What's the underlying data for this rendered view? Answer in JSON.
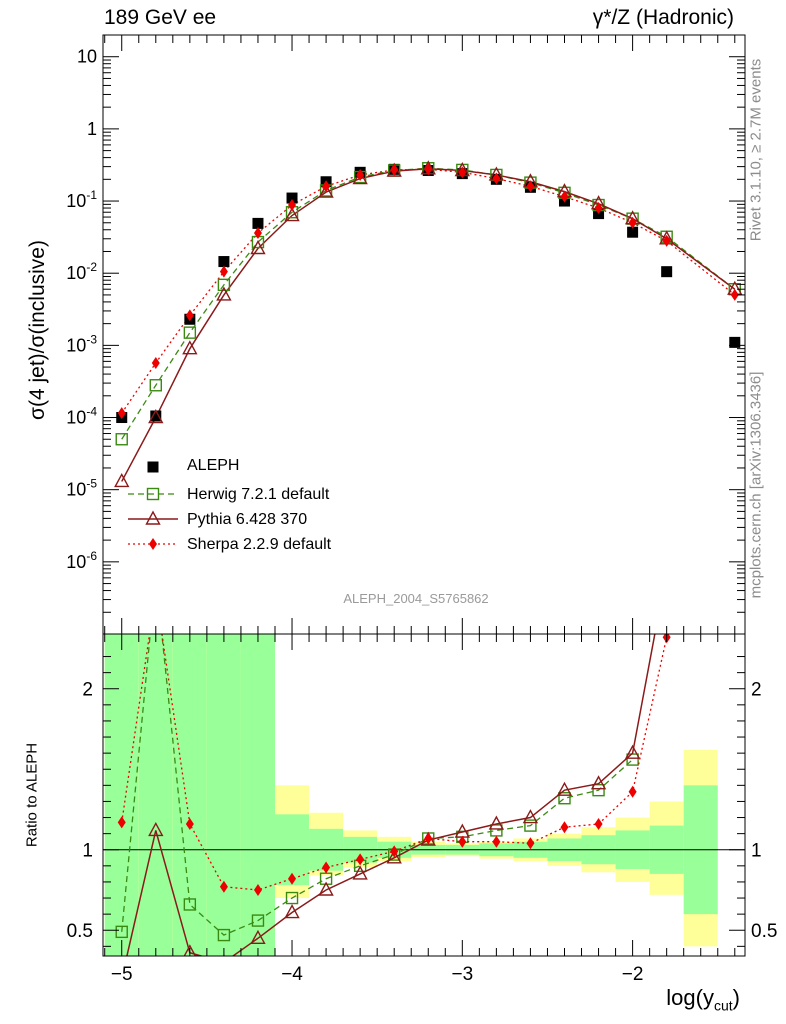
{
  "header": {
    "left": "189 GeV ee",
    "right": "γ*/Z (Hadronic)"
  },
  "side": {
    "rivet": "Rivet 3.1.10, ≥ 2.7M events",
    "mcplots": "mcplots.cern.ch [arXiv:1306.3436]"
  },
  "analysis_id": "ALEPH_2004_S5765862",
  "colors": {
    "data": "#000000",
    "herwig": "#3a8a12",
    "pythia": "#8b1a1a",
    "sherpa": "#ee0000",
    "band_inner": "#99ff99",
    "band_outer": "#ffff99"
  },
  "chart_data": [
    {
      "type": "scatter",
      "name": "main",
      "ylabel": "σ(4 jet)/σ(inclusive)",
      "yscale": "log",
      "ylim": [
        1e-07,
        20
      ],
      "xlim": [
        -5.11,
        -1.34
      ],
      "yticks": [
        {
          "v": 1e-06,
          "base": "10",
          "exp": "-6"
        },
        {
          "v": 1e-05,
          "base": "10",
          "exp": "-5"
        },
        {
          "v": 0.0001,
          "base": "10",
          "exp": "-4"
        },
        {
          "v": 0.001,
          "base": "10",
          "exp": "-3"
        },
        {
          "v": 0.01,
          "base": "10",
          "exp": "-2"
        },
        {
          "v": 0.1,
          "base": "10",
          "exp": "-1"
        },
        {
          "v": 1,
          "base": "1",
          "exp": ""
        },
        {
          "v": 10,
          "base": "10",
          "exp": ""
        }
      ],
      "series": [
        {
          "name": "ALEPH",
          "style": "data",
          "x": [
            -5.0,
            -4.8,
            -4.6,
            -4.4,
            -4.2,
            -4.0,
            -3.8,
            -3.6,
            -3.4,
            -3.2,
            -3.0,
            -2.8,
            -2.6,
            -2.4,
            -2.2,
            -2.0,
            -1.8,
            -1.4
          ],
          "y": [
            0.0001,
            0.000105,
            0.0023,
            0.0145,
            0.049,
            0.11,
            0.185,
            0.25,
            0.275,
            0.265,
            0.24,
            0.2,
            0.155,
            0.1,
            0.067,
            0.037,
            0.0105,
            0.0011
          ]
        },
        {
          "name": "Herwig 7.2.1 default",
          "style": "herwig",
          "x": [
            -5.0,
            -4.8,
            -4.6,
            -4.4,
            -4.2,
            -4.0,
            -3.8,
            -3.6,
            -3.4,
            -3.2,
            -3.0,
            -2.8,
            -2.6,
            -2.4,
            -2.2,
            -2.0,
            -1.8,
            -1.4
          ],
          "y": [
            5e-05,
            0.00028,
            0.0015,
            0.0069,
            0.027,
            0.07,
            0.14,
            0.215,
            0.265,
            0.285,
            0.27,
            0.23,
            0.18,
            0.13,
            0.088,
            0.057,
            0.032,
            0.006
          ]
        },
        {
          "name": "Pythia 6.428 370",
          "style": "pythia",
          "x": [
            -5.0,
            -4.8,
            -4.6,
            -4.4,
            -4.2,
            -4.0,
            -3.8,
            -3.6,
            -3.4,
            -3.2,
            -3.0,
            -2.8,
            -2.6,
            -2.4,
            -2.2,
            -2.0,
            -1.8,
            -1.4
          ],
          "y": [
            1.3e-05,
            0.0001,
            0.0009,
            0.005,
            0.022,
            0.063,
            0.133,
            0.205,
            0.26,
            0.28,
            0.265,
            0.23,
            0.185,
            0.135,
            0.092,
            0.057,
            0.03,
            0.006
          ]
        },
        {
          "name": "Sherpa 2.2.9 default",
          "style": "sherpa",
          "x": [
            -5.0,
            -4.8,
            -4.6,
            -4.4,
            -4.2,
            -4.0,
            -3.8,
            -3.6,
            -3.4,
            -3.2,
            -3.0,
            -2.8,
            -2.6,
            -2.4,
            -2.2,
            -2.0,
            -1.8,
            -1.4
          ],
          "y": [
            0.000115,
            0.00057,
            0.0026,
            0.0105,
            0.036,
            0.088,
            0.16,
            0.23,
            0.27,
            0.275,
            0.25,
            0.205,
            0.16,
            0.115,
            0.08,
            0.05,
            0.028,
            0.005
          ]
        }
      ]
    },
    {
      "type": "line",
      "name": "ratio",
      "ylabel": "Ratio to ALEPH",
      "xlabel": "log(y_cut)",
      "ylim": [
        0.34,
        2.34
      ],
      "xlim": [
        -5.11,
        -1.34
      ],
      "xticks": [
        -5,
        -4,
        -3,
        -2
      ],
      "xtick_labels": [
        "−5",
        "−4",
        "−3",
        "−2"
      ],
      "yticks": [
        0.5,
        1,
        2
      ],
      "ytick_labels": [
        "0.5",
        "1",
        "2"
      ],
      "bands": {
        "edges": [
          -5.1,
          -4.9,
          -4.7,
          -4.5,
          -4.3,
          -4.1,
          -3.9,
          -3.7,
          -3.5,
          -3.3,
          -3.1,
          -2.9,
          -2.7,
          -2.5,
          -2.3,
          -2.1,
          -1.9,
          -1.7,
          -1.5,
          -1.3
        ],
        "inner_lo": [
          0.34,
          0.34,
          0.34,
          0.34,
          0.34,
          0.78,
          0.87,
          0.92,
          0.95,
          0.97,
          0.97,
          0.96,
          0.95,
          0.93,
          0.91,
          0.88,
          0.85,
          0.6,
          null,
          0.34
        ],
        "inner_hi": [
          2.34,
          2.34,
          2.34,
          2.34,
          2.34,
          1.22,
          1.13,
          1.08,
          1.05,
          1.03,
          1.03,
          1.04,
          1.05,
          1.07,
          1.09,
          1.12,
          1.15,
          1.4,
          null,
          2.34
        ],
        "outer_lo": [
          0.34,
          0.34,
          0.34,
          0.34,
          0.34,
          0.7,
          0.84,
          0.89,
          0.93,
          0.955,
          0.96,
          0.945,
          0.93,
          0.9,
          0.86,
          0.8,
          0.72,
          0.4,
          null,
          0.34
        ],
        "outer_hi": [
          2.34,
          2.34,
          2.34,
          2.34,
          2.34,
          1.4,
          1.23,
          1.12,
          1.08,
          1.05,
          1.04,
          1.05,
          1.07,
          1.1,
          1.14,
          1.2,
          1.3,
          1.62,
          null,
          2.34
        ]
      },
      "series": [
        {
          "name": "Herwig 7.2.1 default",
          "style": "herwig",
          "x": [
            -5.0,
            -4.8,
            -4.6,
            -4.4,
            -4.2,
            -4.0,
            -3.8,
            -3.6,
            -3.4,
            -3.2,
            -3.0,
            -2.8,
            -2.6,
            -2.4,
            -2.2,
            -2.0
          ],
          "y": [
            0.49,
            2.7,
            0.66,
            0.47,
            0.56,
            0.7,
            0.82,
            0.9,
            0.97,
            1.07,
            1.08,
            1.12,
            1.15,
            1.32,
            1.37,
            1.56
          ]
        },
        {
          "name": "Pythia 6.428 370",
          "style": "pythia",
          "x": [
            -5.0,
            -4.8,
            -4.6,
            -4.4,
            -4.2,
            -4.0,
            -3.8,
            -3.6,
            -3.4,
            -3.2,
            -3.0,
            -2.8,
            -2.6,
            -2.4,
            -2.2,
            -2.0,
            -1.85
          ],
          "y": [
            0.2,
            1.12,
            0.36,
            0.3,
            0.45,
            0.61,
            0.75,
            0.85,
            0.95,
            1.06,
            1.11,
            1.16,
            1.2,
            1.37,
            1.41,
            1.6,
            2.45
          ]
        },
        {
          "name": "Sherpa 2.2.9 default",
          "style": "sherpa",
          "x": [
            -5.0,
            -4.8,
            -4.6,
            -4.4,
            -4.2,
            -4.0,
            -3.8,
            -3.6,
            -3.4,
            -3.2,
            -3.0,
            -2.8,
            -2.6,
            -2.4,
            -2.2,
            -2.0,
            -1.8
          ],
          "y": [
            1.17,
            2.6,
            1.16,
            0.77,
            0.75,
            0.82,
            0.89,
            0.94,
            0.99,
            1.07,
            1.05,
            1.05,
            1.04,
            1.14,
            1.16,
            1.36,
            2.32
          ]
        }
      ]
    }
  ]
}
